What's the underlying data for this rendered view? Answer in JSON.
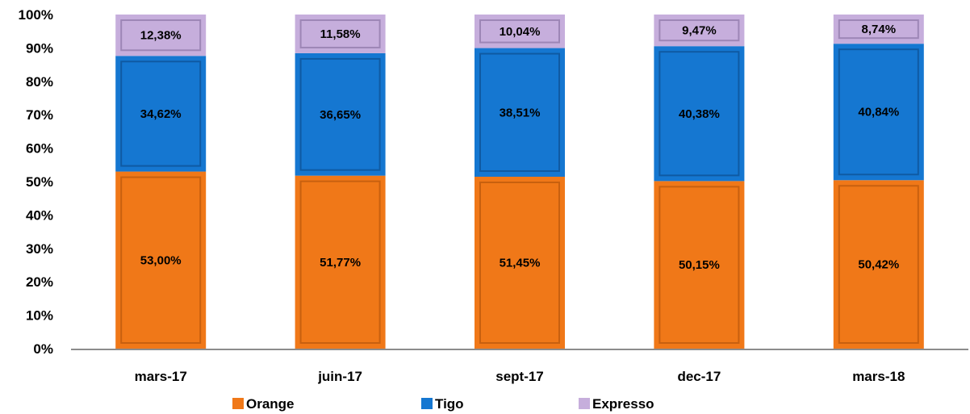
{
  "chart_data": {
    "type": "bar",
    "stacked": true,
    "percent_stacked": true,
    "categories": [
      "mars-17",
      "juin-17",
      "sept-17",
      "dec-17",
      "mars-18"
    ],
    "series": [
      {
        "name": "Orange",
        "color": "#F07818",
        "values": [
          53.0,
          51.77,
          51.45,
          50.15,
          50.42
        ],
        "labels": [
          "53,00%",
          "51,77%",
          "51,45%",
          "50,15%",
          "50,42%"
        ]
      },
      {
        "name": "Tigo",
        "color": "#1577D1",
        "values": [
          34.62,
          36.65,
          38.51,
          40.38,
          40.84
        ],
        "labels": [
          "34,62%",
          "36,65%",
          "38,51%",
          "40,38%",
          "40,84%"
        ]
      },
      {
        "name": "Expresso",
        "color": "#C6AEDC",
        "values": [
          12.38,
          11.58,
          10.04,
          9.47,
          8.74
        ],
        "labels": [
          "12,38%",
          "11,58%",
          "10,04%",
          "9,47%",
          "8,74%"
        ]
      }
    ],
    "ylim": [
      0,
      100
    ],
    "yticks": [
      "0%",
      "10%",
      "20%",
      "30%",
      "40%",
      "50%",
      "60%",
      "70%",
      "80%",
      "90%",
      "100%"
    ],
    "grid": false,
    "legend": "bottom"
  }
}
